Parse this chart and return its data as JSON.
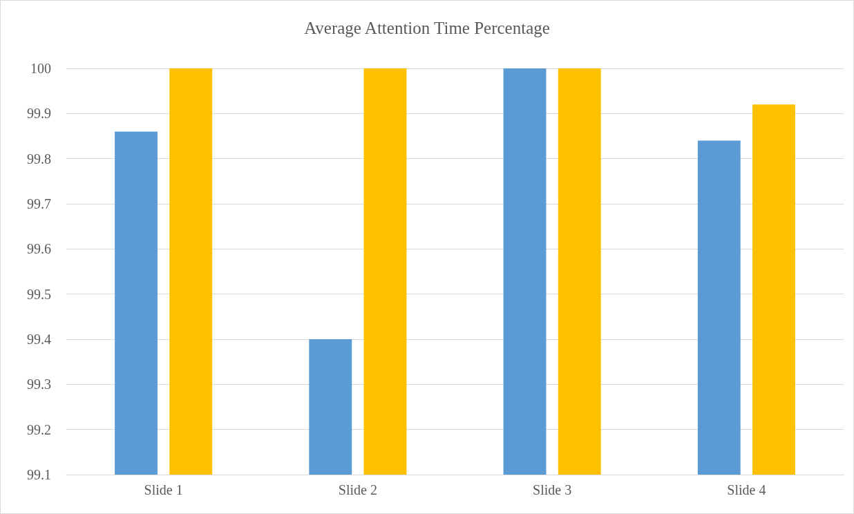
{
  "chart_data": {
    "type": "bar",
    "title": "Average Attention Time Percentage",
    "categories": [
      "Slide 1",
      "Slide 2",
      "Slide 3",
      "Slide 4"
    ],
    "series": [
      {
        "color": "#5b9bd5",
        "values": [
          99.86,
          99.4,
          100,
          99.84
        ]
      },
      {
        "color": "#ffc000",
        "values": [
          100,
          100,
          100,
          99.92
        ]
      }
    ],
    "ylim": [
      99.1,
      100
    ],
    "yticks": [
      99.1,
      99.2,
      99.3,
      99.4,
      99.5,
      99.6,
      99.7,
      99.8,
      99.9,
      100
    ],
    "grid": "y"
  }
}
